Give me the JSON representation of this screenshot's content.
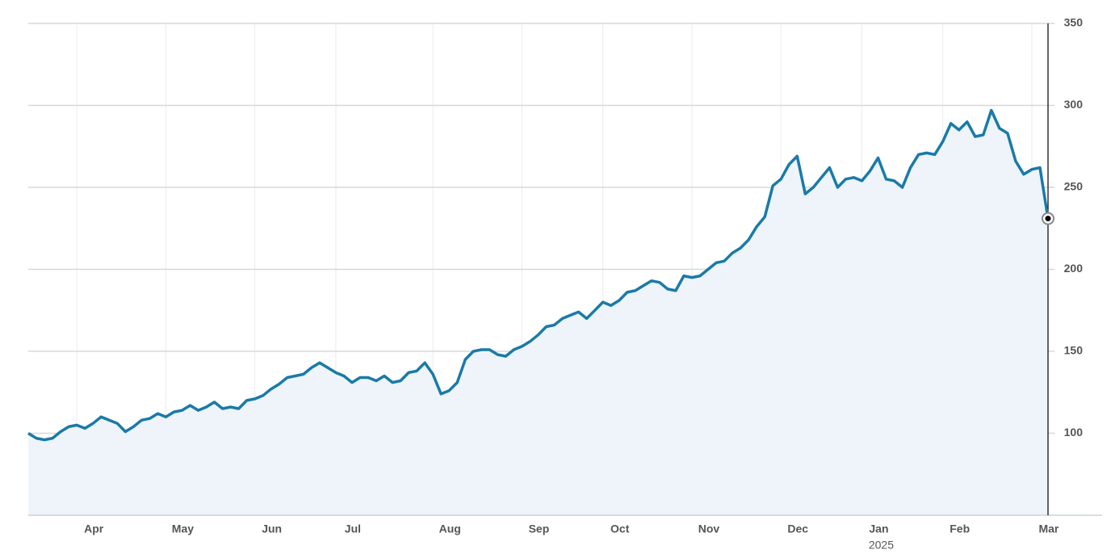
{
  "chart_data": {
    "type": "line",
    "color": "#1a7aa8",
    "area_color": "#eef4fa",
    "grid": true,
    "year_label": "2025",
    "year_under": "Jan",
    "ylim": [
      50,
      350
    ],
    "yticks": [
      100,
      150,
      200,
      250,
      300,
      350
    ],
    "categories": [
      null,
      null,
      null,
      null,
      null,
      null,
      "Apr",
      null,
      null,
      null,
      null,
      null,
      null,
      null,
      null,
      null,
      null,
      "May",
      null,
      null,
      null,
      null,
      null,
      null,
      null,
      null,
      null,
      null,
      "Jun",
      null,
      null,
      null,
      null,
      null,
      null,
      null,
      null,
      null,
      "Jul",
      null,
      null,
      null,
      null,
      null,
      null,
      null,
      null,
      null,
      null,
      null,
      "Aug",
      null,
      null,
      null,
      null,
      null,
      null,
      null,
      null,
      null,
      null,
      "Sep",
      null,
      null,
      null,
      null,
      null,
      null,
      null,
      null,
      null,
      "Oct",
      null,
      null,
      null,
      null,
      null,
      null,
      null,
      null,
      null,
      null,
      "Nov",
      null,
      null,
      null,
      null,
      null,
      null,
      null,
      null,
      null,
      null,
      "Dec",
      null,
      null,
      null,
      null,
      null,
      null,
      null,
      null,
      null,
      "Jan",
      null,
      null,
      null,
      null,
      null,
      null,
      null,
      null,
      null,
      "Feb",
      null,
      null,
      null,
      null,
      null,
      null,
      null,
      null,
      null,
      null,
      "Mar",
      null,
      null
    ],
    "values": [
      100,
      97,
      96,
      97,
      101,
      104,
      105,
      103,
      106,
      110,
      108,
      106,
      101,
      104,
      108,
      109,
      112,
      110,
      113,
      114,
      117,
      114,
      116,
      119,
      115,
      116,
      115,
      120,
      121,
      123,
      127,
      130,
      134,
      135,
      136,
      140,
      143,
      140,
      137,
      135,
      131,
      134,
      134,
      132,
      135,
      131,
      132,
      137,
      138,
      143,
      136,
      124,
      126,
      131,
      145,
      150,
      151,
      151,
      148,
      147,
      151,
      153,
      156,
      160,
      165,
      166,
      170,
      172,
      174,
      170,
      175,
      180,
      178,
      181,
      186,
      187,
      190,
      193,
      192,
      188,
      187,
      196,
      195,
      196,
      200,
      204,
      205,
      210,
      213,
      218,
      226,
      232,
      251,
      255,
      264,
      269,
      246,
      250,
      256,
      262,
      250,
      255,
      256,
      254,
      260,
      268,
      255,
      254,
      250,
      262,
      270,
      271,
      270,
      278,
      289,
      285,
      290,
      281,
      282,
      297,
      286,
      283,
      266,
      258,
      261,
      262,
      231
    ]
  }
}
